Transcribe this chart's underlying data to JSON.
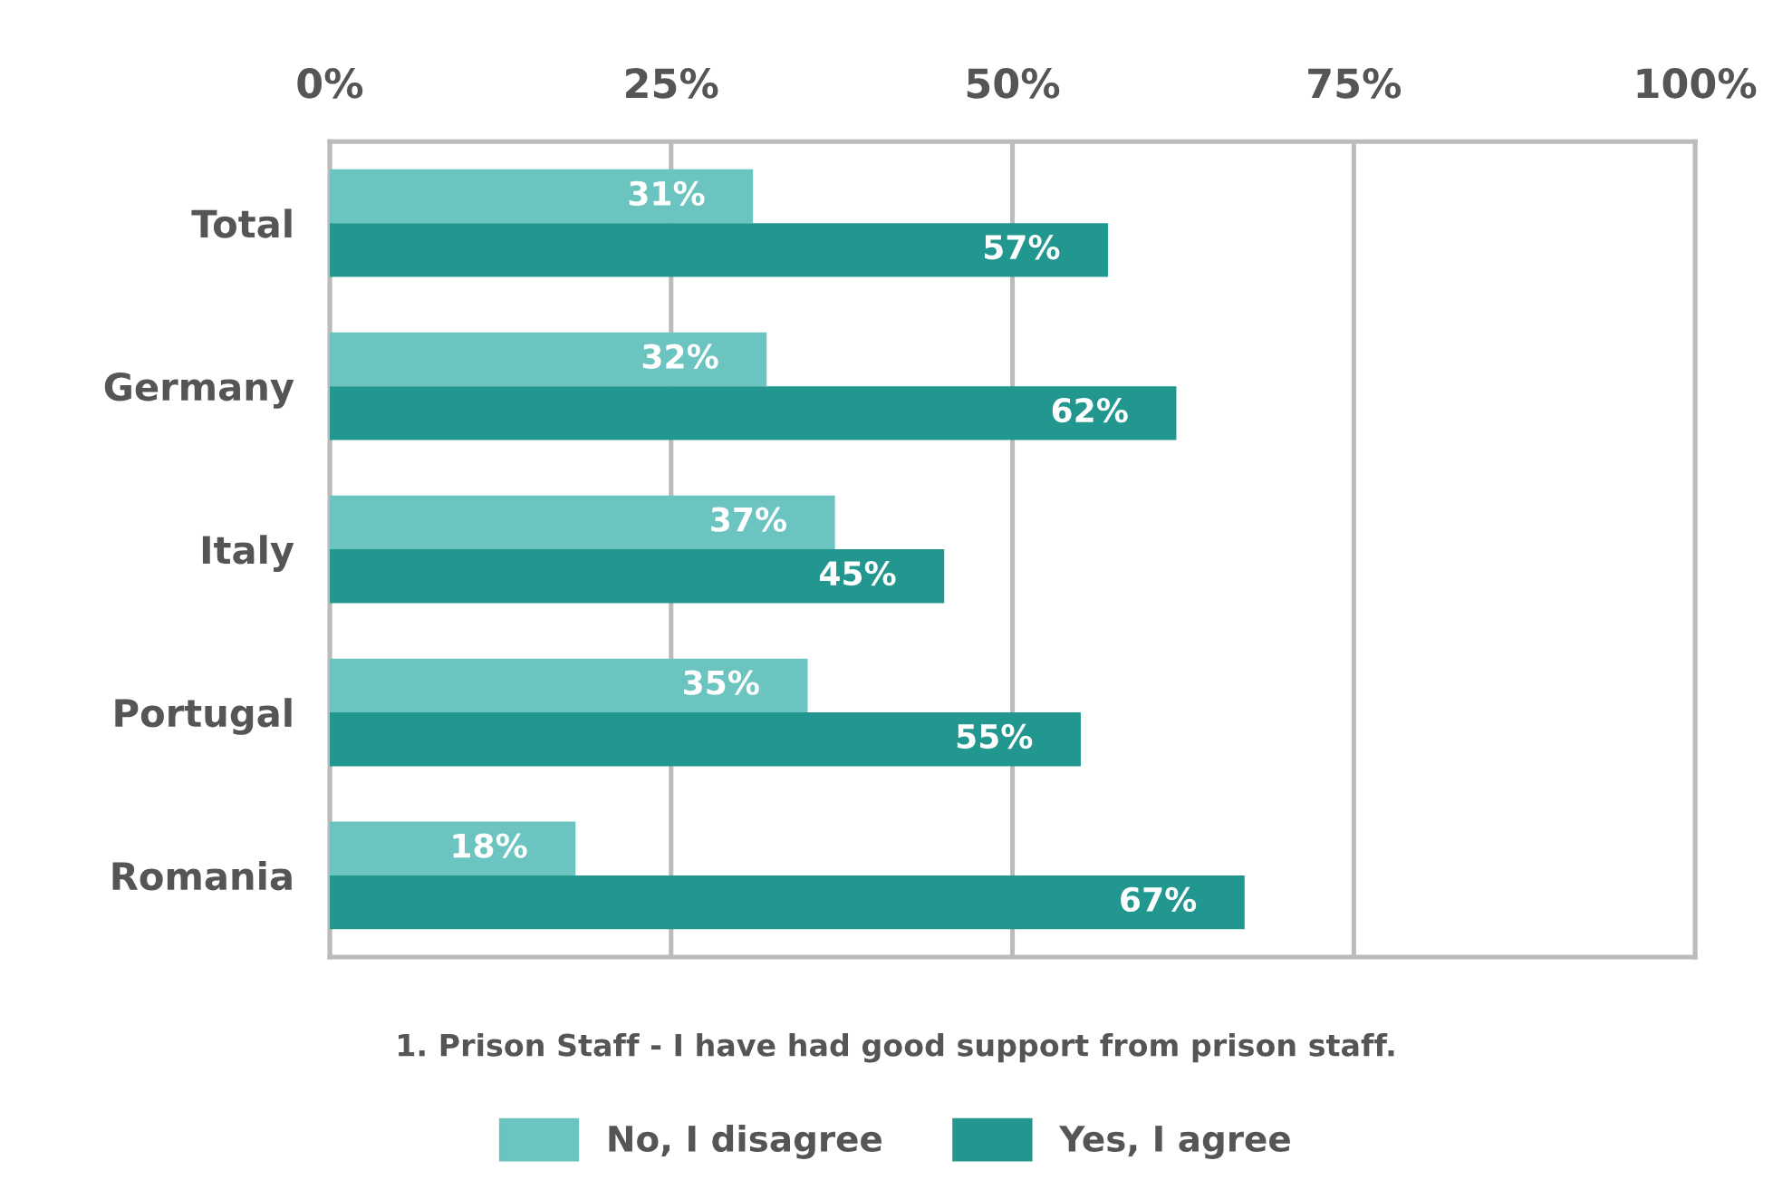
{
  "chart_data": {
    "type": "bar",
    "orientation": "horizontal",
    "categories": [
      "Total",
      "Germany",
      "Italy",
      "Portugal",
      "Romania"
    ],
    "series": [
      {
        "name": "No, I disagree",
        "color": "#6cc4c0",
        "values": [
          31,
          32,
          37,
          35,
          18
        ],
        "value_labels": [
          "31%",
          "32%",
          "37%",
          "35%",
          "18%"
        ]
      },
      {
        "name": "Yes, I agree",
        "color": "#22978f",
        "values": [
          57,
          62,
          45,
          55,
          67
        ],
        "value_labels": [
          "57%",
          "62%",
          "45%",
          "55%",
          "67%"
        ]
      }
    ],
    "xlim": [
      0,
      100
    ],
    "xticks": [
      {
        "value": 0,
        "label": "0%"
      },
      {
        "value": 25,
        "label": "25%"
      },
      {
        "value": 50,
        "label": "50%"
      },
      {
        "value": 75,
        "label": "75%"
      },
      {
        "value": 100,
        "label": "100%"
      }
    ],
    "grid": "x",
    "legend": "bottom",
    "annotations": [
      "1. Prison Staff - I have had good support from prison staff."
    ]
  }
}
